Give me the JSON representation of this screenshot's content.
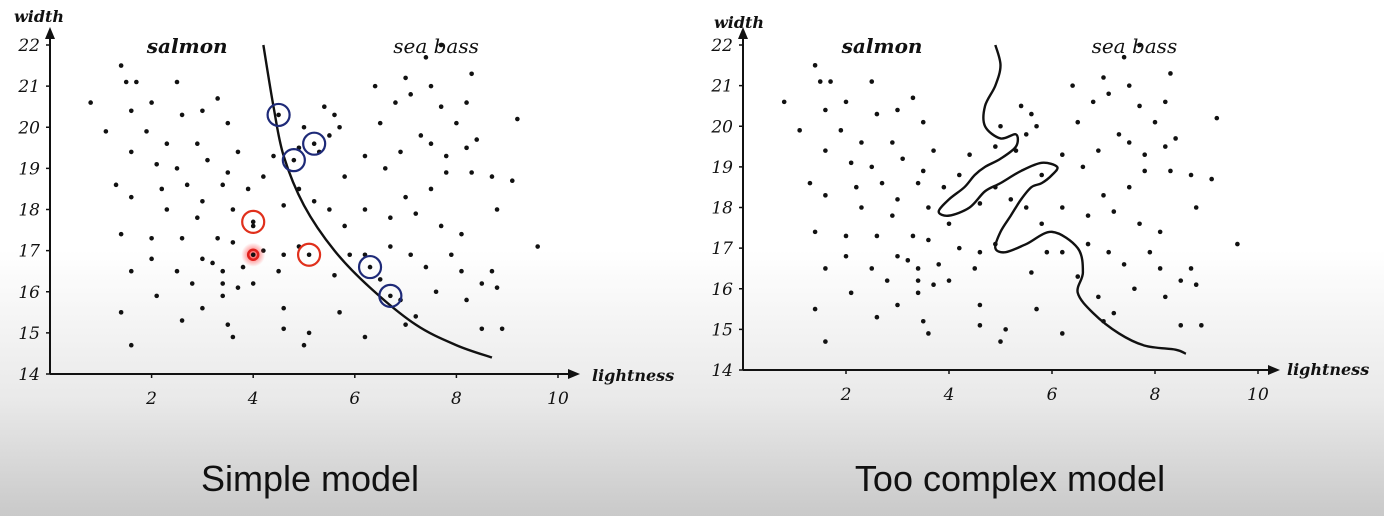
{
  "chart_data": [
    {
      "type": "scatter",
      "caption": "Simple model",
      "xlabel": "lightness",
      "ylabel": "width",
      "xlim": [
        0,
        10
      ],
      "ylim": [
        14,
        22
      ],
      "xticks": [
        2,
        4,
        6,
        8,
        10
      ],
      "yticks": [
        14,
        15,
        16,
        17,
        18,
        19,
        20,
        21,
        22
      ],
      "region_labels": [
        {
          "text": "salmon",
          "x": 2.7,
          "y": 21.8,
          "style": "bold-italic"
        },
        {
          "text": "sea bass",
          "x": 7.6,
          "y": 21.8,
          "style": "italic"
        }
      ],
      "points": [
        [
          0.8,
          20.6
        ],
        [
          1.4,
          21.5
        ],
        [
          1.5,
          21.1
        ],
        [
          1.7,
          21.1
        ],
        [
          1.1,
          19.9
        ],
        [
          1.6,
          20.4
        ],
        [
          2.0,
          20.6
        ],
        [
          1.9,
          19.9
        ],
        [
          2.5,
          21.1
        ],
        [
          2.6,
          20.3
        ],
        [
          3.0,
          20.4
        ],
        [
          3.3,
          20.7
        ],
        [
          3.5,
          20.1
        ],
        [
          2.3,
          19.6
        ],
        [
          1.6,
          19.4
        ],
        [
          2.1,
          19.1
        ],
        [
          2.9,
          19.6
        ],
        [
          3.1,
          19.2
        ],
        [
          3.5,
          18.9
        ],
        [
          3.7,
          19.4
        ],
        [
          2.5,
          19.0
        ],
        [
          1.3,
          18.6
        ],
        [
          2.2,
          18.5
        ],
        [
          2.7,
          18.6
        ],
        [
          3.0,
          18.2
        ],
        [
          3.4,
          18.6
        ],
        [
          3.9,
          18.5
        ],
        [
          4.2,
          18.8
        ],
        [
          1.6,
          18.3
        ],
        [
          2.3,
          18.0
        ],
        [
          2.9,
          17.8
        ],
        [
          3.6,
          18.0
        ],
        [
          4.0,
          17.6
        ],
        [
          3.3,
          17.3
        ],
        [
          3.6,
          17.2
        ],
        [
          1.4,
          17.4
        ],
        [
          2.0,
          17.3
        ],
        [
          2.6,
          17.3
        ],
        [
          3.0,
          16.8
        ],
        [
          3.4,
          16.5
        ],
        [
          3.8,
          16.6
        ],
        [
          3.2,
          16.7
        ],
        [
          4.2,
          17.0
        ],
        [
          4.6,
          16.9
        ],
        [
          4.9,
          17.1
        ],
        [
          4.5,
          16.5
        ],
        [
          1.6,
          16.5
        ],
        [
          2.0,
          16.8
        ],
        [
          2.5,
          16.5
        ],
        [
          2.8,
          16.2
        ],
        [
          3.4,
          16.2
        ],
        [
          3.7,
          16.1
        ],
        [
          4.0,
          16.2
        ],
        [
          2.1,
          15.9
        ],
        [
          3.0,
          15.6
        ],
        [
          3.4,
          15.9
        ],
        [
          4.6,
          15.6
        ],
        [
          1.4,
          15.5
        ],
        [
          2.6,
          15.3
        ],
        [
          3.5,
          15.2
        ],
        [
          4.6,
          15.1
        ],
        [
          3.6,
          14.9
        ],
        [
          1.6,
          14.7
        ],
        [
          5.0,
          14.7
        ],
        [
          5.1,
          15.0
        ],
        [
          5.4,
          20.5
        ],
        [
          5.6,
          20.3
        ],
        [
          5.0,
          20.0
        ],
        [
          5.3,
          19.4
        ],
        [
          5.5,
          19.8
        ],
        [
          5.7,
          20.0
        ],
        [
          4.9,
          19.5
        ],
        [
          5.8,
          18.8
        ],
        [
          6.2,
          19.3
        ],
        [
          6.6,
          19.0
        ],
        [
          6.9,
          19.4
        ],
        [
          7.3,
          19.8
        ],
        [
          7.5,
          19.6
        ],
        [
          7.8,
          19.3
        ],
        [
          8.2,
          19.5
        ],
        [
          8.4,
          19.7
        ],
        [
          6.5,
          20.1
        ],
        [
          6.8,
          20.6
        ],
        [
          7.1,
          20.8
        ],
        [
          7.5,
          21.0
        ],
        [
          7.7,
          20.5
        ],
        [
          8.0,
          20.1
        ],
        [
          8.2,
          20.6
        ],
        [
          7.0,
          21.2
        ],
        [
          7.4,
          21.7
        ],
        [
          7.7,
          22.0
        ],
        [
          8.3,
          21.3
        ],
        [
          6.4,
          21.0
        ],
        [
          9.2,
          20.2
        ],
        [
          7.0,
          18.3
        ],
        [
          7.5,
          18.5
        ],
        [
          7.8,
          18.9
        ],
        [
          8.3,
          18.9
        ],
        [
          8.7,
          18.8
        ],
        [
          9.1,
          18.7
        ],
        [
          6.2,
          18.0
        ],
        [
          6.7,
          17.8
        ],
        [
          7.2,
          17.9
        ],
        [
          7.7,
          17.6
        ],
        [
          8.1,
          17.4
        ],
        [
          8.8,
          18.0
        ],
        [
          5.8,
          17.6
        ],
        [
          6.2,
          16.9
        ],
        [
          6.7,
          17.1
        ],
        [
          7.1,
          16.9
        ],
        [
          7.4,
          16.6
        ],
        [
          7.9,
          16.9
        ],
        [
          8.1,
          16.5
        ],
        [
          8.5,
          16.2
        ],
        [
          8.7,
          16.5
        ],
        [
          5.6,
          16.4
        ],
        [
          6.5,
          16.3
        ],
        [
          7.6,
          16.0
        ],
        [
          8.2,
          15.8
        ],
        [
          7.2,
          15.4
        ],
        [
          5.7,
          15.5
        ],
        [
          8.5,
          15.1
        ],
        [
          6.2,
          14.9
        ],
        [
          9.6,
          17.1
        ],
        [
          8.8,
          16.1
        ],
        [
          8.9,
          15.1
        ],
        [
          7.0,
          15.2
        ],
        [
          5.9,
          16.9
        ],
        [
          6.9,
          15.8
        ],
        [
          4.4,
          19.3
        ],
        [
          4.6,
          18.1
        ],
        [
          4.9,
          18.5
        ],
        [
          5.2,
          18.2
        ],
        [
          5.5,
          18.0
        ]
      ],
      "circled_salmon": [
        [
          4.0,
          17.7
        ],
        [
          5.1,
          16.9
        ],
        [
          4.0,
          16.9
        ]
      ],
      "circled_sea_bass": [
        [
          4.5,
          20.3
        ],
        [
          4.8,
          19.2
        ],
        [
          5.2,
          19.6
        ],
        [
          6.3,
          16.6
        ],
        [
          6.7,
          15.9
        ]
      ],
      "boundary": [
        [
          4.2,
          22.0
        ],
        [
          4.4,
          20.5
        ],
        [
          4.6,
          19.3
        ],
        [
          5.0,
          18.1
        ],
        [
          5.6,
          17.0
        ],
        [
          6.3,
          16.1
        ],
        [
          7.2,
          15.2
        ],
        [
          8.0,
          14.7
        ],
        [
          8.7,
          14.4
        ]
      ]
    },
    {
      "type": "scatter",
      "caption": "Too complex model",
      "xlabel": "lightness",
      "ylabel": "width",
      "xlim": [
        0,
        10
      ],
      "ylim": [
        14,
        22
      ],
      "xticks": [
        2,
        4,
        6,
        8,
        10
      ],
      "yticks": [
        14,
        15,
        16,
        17,
        18,
        19,
        20,
        21,
        22
      ],
      "region_labels": [
        {
          "text": "salmon",
          "x": 2.7,
          "y": 21.8,
          "style": "bold-italic"
        },
        {
          "text": "sea bass",
          "x": 7.6,
          "y": 21.8,
          "style": "italic"
        }
      ],
      "points": [
        [
          0.8,
          20.6
        ],
        [
          1.4,
          21.5
        ],
        [
          1.5,
          21.1
        ],
        [
          1.7,
          21.1
        ],
        [
          1.1,
          19.9
        ],
        [
          1.6,
          20.4
        ],
        [
          2.0,
          20.6
        ],
        [
          1.9,
          19.9
        ],
        [
          2.5,
          21.1
        ],
        [
          2.6,
          20.3
        ],
        [
          3.0,
          20.4
        ],
        [
          3.3,
          20.7
        ],
        [
          3.5,
          20.1
        ],
        [
          2.3,
          19.6
        ],
        [
          1.6,
          19.4
        ],
        [
          2.1,
          19.1
        ],
        [
          2.9,
          19.6
        ],
        [
          3.1,
          19.2
        ],
        [
          3.5,
          18.9
        ],
        [
          3.7,
          19.4
        ],
        [
          2.5,
          19.0
        ],
        [
          1.3,
          18.6
        ],
        [
          2.2,
          18.5
        ],
        [
          2.7,
          18.6
        ],
        [
          3.0,
          18.2
        ],
        [
          3.4,
          18.6
        ],
        [
          3.9,
          18.5
        ],
        [
          4.2,
          18.8
        ],
        [
          1.6,
          18.3
        ],
        [
          2.3,
          18.0
        ],
        [
          2.9,
          17.8
        ],
        [
          3.6,
          18.0
        ],
        [
          4.0,
          17.6
        ],
        [
          3.3,
          17.3
        ],
        [
          3.6,
          17.2
        ],
        [
          1.4,
          17.4
        ],
        [
          2.0,
          17.3
        ],
        [
          2.6,
          17.3
        ],
        [
          3.0,
          16.8
        ],
        [
          3.4,
          16.5
        ],
        [
          3.8,
          16.6
        ],
        [
          3.2,
          16.7
        ],
        [
          4.2,
          17.0
        ],
        [
          4.6,
          16.9
        ],
        [
          4.9,
          17.1
        ],
        [
          4.5,
          16.5
        ],
        [
          1.6,
          16.5
        ],
        [
          2.0,
          16.8
        ],
        [
          2.5,
          16.5
        ],
        [
          2.8,
          16.2
        ],
        [
          3.4,
          16.2
        ],
        [
          3.7,
          16.1
        ],
        [
          4.0,
          16.2
        ],
        [
          2.1,
          15.9
        ],
        [
          3.0,
          15.6
        ],
        [
          3.4,
          15.9
        ],
        [
          4.6,
          15.6
        ],
        [
          1.4,
          15.5
        ],
        [
          2.6,
          15.3
        ],
        [
          3.5,
          15.2
        ],
        [
          4.6,
          15.1
        ],
        [
          3.6,
          14.9
        ],
        [
          1.6,
          14.7
        ],
        [
          5.0,
          14.7
        ],
        [
          5.1,
          15.0
        ],
        [
          5.4,
          20.5
        ],
        [
          5.6,
          20.3
        ],
        [
          5.0,
          20.0
        ],
        [
          5.3,
          19.4
        ],
        [
          5.5,
          19.8
        ],
        [
          5.7,
          20.0
        ],
        [
          4.9,
          19.5
        ],
        [
          5.8,
          18.8
        ],
        [
          6.2,
          19.3
        ],
        [
          6.6,
          19.0
        ],
        [
          6.9,
          19.4
        ],
        [
          7.3,
          19.8
        ],
        [
          7.5,
          19.6
        ],
        [
          7.8,
          19.3
        ],
        [
          8.2,
          19.5
        ],
        [
          8.4,
          19.7
        ],
        [
          6.5,
          20.1
        ],
        [
          6.8,
          20.6
        ],
        [
          7.1,
          20.8
        ],
        [
          7.5,
          21.0
        ],
        [
          7.7,
          20.5
        ],
        [
          8.0,
          20.1
        ],
        [
          8.2,
          20.6
        ],
        [
          7.0,
          21.2
        ],
        [
          7.4,
          21.7
        ],
        [
          7.7,
          22.0
        ],
        [
          8.3,
          21.3
        ],
        [
          6.4,
          21.0
        ],
        [
          9.2,
          20.2
        ],
        [
          7.0,
          18.3
        ],
        [
          7.5,
          18.5
        ],
        [
          7.8,
          18.9
        ],
        [
          8.3,
          18.9
        ],
        [
          8.7,
          18.8
        ],
        [
          9.1,
          18.7
        ],
        [
          6.2,
          18.0
        ],
        [
          6.7,
          17.8
        ],
        [
          7.2,
          17.9
        ],
        [
          7.7,
          17.6
        ],
        [
          8.1,
          17.4
        ],
        [
          8.8,
          18.0
        ],
        [
          5.8,
          17.6
        ],
        [
          6.2,
          16.9
        ],
        [
          6.7,
          17.1
        ],
        [
          7.1,
          16.9
        ],
        [
          7.4,
          16.6
        ],
        [
          7.9,
          16.9
        ],
        [
          8.1,
          16.5
        ],
        [
          8.5,
          16.2
        ],
        [
          8.7,
          16.5
        ],
        [
          5.6,
          16.4
        ],
        [
          6.5,
          16.3
        ],
        [
          7.6,
          16.0
        ],
        [
          8.2,
          15.8
        ],
        [
          7.2,
          15.4
        ],
        [
          5.7,
          15.5
        ],
        [
          8.5,
          15.1
        ],
        [
          6.2,
          14.9
        ],
        [
          9.6,
          17.1
        ],
        [
          8.8,
          16.1
        ],
        [
          8.9,
          15.1
        ],
        [
          7.0,
          15.2
        ],
        [
          5.9,
          16.9
        ],
        [
          6.9,
          15.8
        ],
        [
          4.4,
          19.3
        ],
        [
          4.6,
          18.1
        ],
        [
          4.9,
          18.5
        ],
        [
          5.2,
          18.2
        ],
        [
          5.5,
          18.0
        ]
      ],
      "boundary": [
        [
          4.9,
          22.0
        ],
        [
          5.0,
          21.5
        ],
        [
          4.9,
          21.0
        ],
        [
          4.7,
          20.5
        ],
        [
          4.7,
          20.0
        ],
        [
          5.0,
          19.7
        ],
        [
          5.3,
          19.8
        ],
        [
          5.3,
          19.5
        ],
        [
          5.0,
          19.2
        ],
        [
          4.7,
          19.0
        ],
        [
          4.5,
          18.8
        ],
        [
          4.3,
          18.5
        ],
        [
          4.0,
          18.2
        ],
        [
          3.8,
          17.9
        ],
        [
          4.0,
          17.8
        ],
        [
          4.4,
          18.0
        ],
        [
          4.7,
          18.4
        ],
        [
          5.0,
          18.6
        ],
        [
          5.4,
          18.9
        ],
        [
          5.8,
          19.1
        ],
        [
          6.1,
          19.0
        ],
        [
          6.0,
          18.8
        ],
        [
          5.8,
          18.6
        ],
        [
          5.6,
          18.5
        ],
        [
          5.4,
          18.2
        ],
        [
          5.2,
          17.8
        ],
        [
          5.0,
          17.4
        ],
        [
          4.9,
          17.0
        ],
        [
          5.1,
          16.9
        ],
        [
          5.5,
          17.1
        ],
        [
          6.0,
          17.4
        ],
        [
          6.5,
          17.0
        ],
        [
          6.6,
          16.4
        ],
        [
          6.5,
          15.9
        ],
        [
          6.8,
          15.4
        ],
        [
          7.3,
          14.9
        ],
        [
          7.8,
          14.6
        ],
        [
          8.4,
          14.5
        ],
        [
          8.6,
          14.4
        ]
      ]
    }
  ]
}
